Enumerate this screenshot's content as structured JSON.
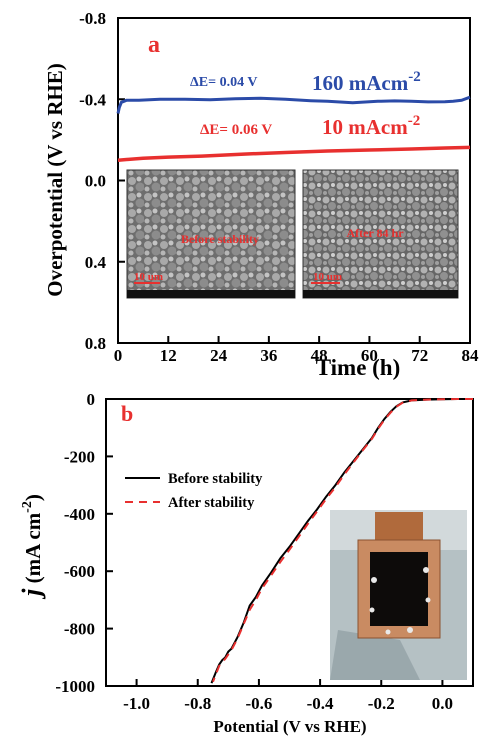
{
  "chart_data": [
    {
      "panel_label": "a",
      "type": "line",
      "xlabel": "Time (h)",
      "ylabel": "Overpotential (V vs RHE)",
      "xlim": [
        0,
        84
      ],
      "ylim": [
        -0.8,
        0.8
      ],
      "y_axis_inverted": true,
      "xticks": [
        "0",
        "12",
        "24",
        "36",
        "48",
        "60",
        "72",
        "84"
      ],
      "yticks": [
        "-0.8",
        "-0.4",
        "0.0",
        "0.4",
        "0.8"
      ],
      "grid": false,
      "series": [
        {
          "name": "160 mAcm-2",
          "color": "#2b4ba8",
          "points": [
            [
              0,
              -0.33
            ],
            [
              0.3,
              -0.36
            ],
            [
              0.8,
              -0.385
            ],
            [
              2,
              -0.395
            ],
            [
              5,
              -0.395
            ],
            [
              10,
              -0.4
            ],
            [
              16,
              -0.4
            ],
            [
              22,
              -0.398
            ],
            [
              28,
              -0.402
            ],
            [
              34,
              -0.405
            ],
            [
              40,
              -0.4
            ],
            [
              46,
              -0.393
            ],
            [
              50,
              -0.39
            ],
            [
              54,
              -0.385
            ],
            [
              56,
              -0.383
            ],
            [
              58,
              -0.385
            ],
            [
              62,
              -0.39
            ],
            [
              66,
              -0.392
            ],
            [
              70,
              -0.39
            ],
            [
              74,
              -0.387
            ],
            [
              78,
              -0.388
            ],
            [
              80,
              -0.39
            ],
            [
              82,
              -0.395
            ],
            [
              84,
              -0.41
            ]
          ]
        },
        {
          "name": "10 mAcm-2",
          "color": "#e8302f",
          "points": [
            [
              0,
              -0.1
            ],
            [
              6,
              -0.11
            ],
            [
              12,
              -0.115
            ],
            [
              20,
              -0.12
            ],
            [
              30,
              -0.13
            ],
            [
              40,
              -0.138
            ],
            [
              50,
              -0.145
            ],
            [
              60,
              -0.15
            ],
            [
              70,
              -0.155
            ],
            [
              78,
              -0.16
            ],
            [
              84,
              -0.163
            ]
          ]
        }
      ],
      "annotations": {
        "delta_high": "ΔE= 0.04 V",
        "delta_low": "ΔE= 0.06 V",
        "label_high": "160 mAcm",
        "label_low": "10 mAcm",
        "exponent": "-2"
      },
      "insets": [
        {
          "caption": "Before stability",
          "scale": "10 um"
        },
        {
          "caption": "After 84 hr",
          "scale": "10 um"
        }
      ]
    },
    {
      "panel_label": "b",
      "type": "line",
      "xlabel": "Potential (V vs RHE)",
      "ylabel": "j (mA cm-2)",
      "ylabel_symbol": "j",
      "ylabel_unit": " (mA cm",
      "ylabel_exponent": "-2",
      "ylabel_close": ")",
      "xlim": [
        -1.1,
        0.1
      ],
      "ylim": [
        -1000,
        0
      ],
      "xticks": [
        "-1.0",
        "-0.8",
        "-0.6",
        "-0.4",
        "-0.2",
        "0.0"
      ],
      "yticks": [
        "0",
        "-200",
        "-400",
        "-600",
        "-800",
        "-1000"
      ],
      "grid": false,
      "legend_position": "middle-left",
      "series": [
        {
          "name": "Before stability",
          "color": "#000000",
          "style": "solid",
          "points": [
            [
              0.1,
              0
            ],
            [
              0.05,
              0
            ],
            [
              0,
              -1
            ],
            [
              -0.05,
              -2
            ],
            [
              -0.1,
              -5
            ],
            [
              -0.13,
              -12
            ],
            [
              -0.15,
              -25
            ],
            [
              -0.17,
              -45
            ],
            [
              -0.19,
              -70
            ],
            [
              -0.21,
              -100
            ],
            [
              -0.23,
              -135
            ],
            [
              -0.26,
              -175
            ],
            [
              -0.29,
              -215
            ],
            [
              -0.32,
              -255
            ],
            [
              -0.35,
              -300
            ],
            [
              -0.38,
              -340
            ],
            [
              -0.41,
              -385
            ],
            [
              -0.44,
              -425
            ],
            [
              -0.47,
              -470
            ],
            [
              -0.5,
              -515
            ],
            [
              -0.53,
              -555
            ],
            [
              -0.56,
              -605
            ],
            [
              -0.59,
              -650
            ],
            [
              -0.61,
              -690
            ],
            [
              -0.63,
              -720
            ],
            [
              -0.65,
              -780
            ],
            [
              -0.67,
              -830
            ],
            [
              -0.69,
              -870
            ],
            [
              -0.7,
              -880
            ],
            [
              -0.71,
              -900
            ],
            [
              -0.72,
              -910
            ],
            [
              -0.73,
              -925
            ],
            [
              -0.74,
              -950
            ],
            [
              -0.755,
              -990
            ]
          ]
        },
        {
          "name": "After stability",
          "color": "#e8302f",
          "style": "dashed",
          "points": [
            [
              0.1,
              0
            ],
            [
              0.05,
              0
            ],
            [
              0,
              -1
            ],
            [
              -0.05,
              -2
            ],
            [
              -0.1,
              -5
            ],
            [
              -0.13,
              -13
            ],
            [
              -0.15,
              -27
            ],
            [
              -0.17,
              -48
            ],
            [
              -0.19,
              -73
            ],
            [
              -0.21,
              -103
            ],
            [
              -0.23,
              -138
            ],
            [
              -0.26,
              -178
            ],
            [
              -0.29,
              -220
            ],
            [
              -0.32,
              -262
            ],
            [
              -0.35,
              -307
            ],
            [
              -0.38,
              -348
            ],
            [
              -0.41,
              -392
            ],
            [
              -0.44,
              -435
            ],
            [
              -0.47,
              -480
            ],
            [
              -0.5,
              -525
            ],
            [
              -0.53,
              -568
            ],
            [
              -0.56,
              -615
            ],
            [
              -0.59,
              -660
            ],
            [
              -0.61,
              -700
            ],
            [
              -0.63,
              -735
            ],
            [
              -0.65,
              -785
            ],
            [
              -0.67,
              -835
            ],
            [
              -0.69,
              -875
            ],
            [
              -0.71,
              -905
            ],
            [
              -0.73,
              -930
            ],
            [
              -0.75,
              -985
            ]
          ]
        }
      ]
    }
  ]
}
